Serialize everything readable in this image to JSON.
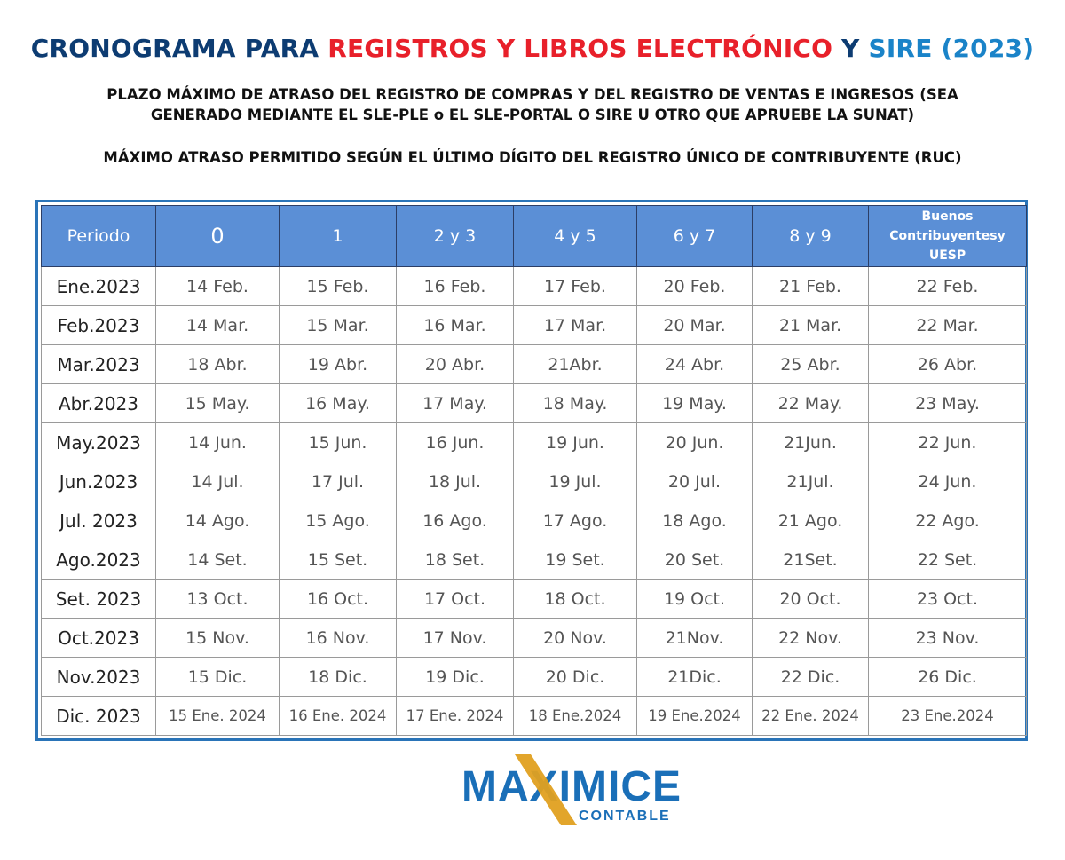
{
  "title": {
    "part1": "CRONOGRAMA PARA ",
    "part2": "REGISTROS Y LIBROS ELECTRÓNICO",
    "part3": " Y ",
    "part4": "SIRE",
    "part5": " (2023)",
    "colors": {
      "navy": "#0d3c72",
      "red": "#e8202a",
      "blue": "#1a83c8"
    }
  },
  "subtitle_line1": "PLAZO MÁXIMO DE ATRASO DEL REGISTRO DE COMPRAS Y DEL REGISTRO DE VENTAS E INGRESOS (SEA",
  "subtitle_line2": "GENERADO MEDIANTE EL SLE-PLE o EL SLE-PORTAL O SIRE U OTRO QUE APRUEBE LA SUNAT)",
  "subtitle_line3": "MÁXIMO ATRASO PERMITIDO SEGÚN EL ÚLTIMO DÍGITO DEL REGISTRO ÚNICO DE CONTRIBUYENTE (RUC)",
  "table": {
    "headers": [
      "Periodo",
      "0",
      "1",
      "2 y 3",
      "4 y 5",
      "6 y 7",
      "8 y 9",
      "Buenos Contribuyentesy UESP"
    ],
    "header_bc_lines": [
      "Buenos",
      "Contribuyentesy",
      "UESP"
    ],
    "rows": [
      [
        "Ene.2023",
        "14 Feb.",
        "15 Feb.",
        "16 Feb.",
        "17 Feb.",
        "20 Feb.",
        "21 Feb.",
        "22 Feb."
      ],
      [
        "Feb.2023",
        "14 Mar.",
        "15 Mar.",
        "16 Mar.",
        "17 Mar.",
        "20 Mar.",
        "21 Mar.",
        "22 Mar."
      ],
      [
        "Mar.2023",
        "18 Abr.",
        "19 Abr.",
        "20 Abr.",
        "21Abr.",
        "24 Abr.",
        "25 Abr.",
        "26 Abr."
      ],
      [
        "Abr.2023",
        "15 May.",
        "16 May.",
        "17 May.",
        "18 May.",
        "19 May.",
        "22 May.",
        "23 May."
      ],
      [
        "May.2023",
        "14 Jun.",
        "15 Jun.",
        "16 Jun.",
        "19 Jun.",
        "20 Jun.",
        "21Jun.",
        "22 Jun."
      ],
      [
        "Jun.2023",
        "14 Jul.",
        "17 Jul.",
        "18 Jul.",
        "19 Jul.",
        "20 Jul.",
        "21Jul.",
        "24 Jun."
      ],
      [
        "Jul. 2023",
        "14 Ago.",
        "15 Ago.",
        "16 Ago.",
        "17 Ago.",
        "18 Ago.",
        "21 Ago.",
        "22 Ago."
      ],
      [
        "Ago.2023",
        "14 Set.",
        "15 Set.",
        "18 Set.",
        "19 Set.",
        "20 Set.",
        "21Set.",
        "22 Set."
      ],
      [
        "Set. 2023",
        "13 Oct.",
        "16 Oct.",
        "17 Oct.",
        "18 Oct.",
        "19 Oct.",
        "20 Oct.",
        "23 Oct."
      ],
      [
        "Oct.2023",
        "15 Nov.",
        "16 Nov.",
        "17 Nov.",
        "20 Nov.",
        "21Nov.",
        "22 Nov.",
        "23 Nov."
      ],
      [
        "Nov.2023",
        "15 Dic.",
        "18 Dic.",
        "19 Dic.",
        "20 Dic.",
        "21Dic.",
        "22 Dic.",
        "26 Dic."
      ],
      [
        "Dic. 2023",
        "15 Ene. 2024",
        "16 Ene. 2024",
        "17 Ene. 2024",
        "18 Ene.2024",
        "19 Ene.2024",
        "22 Ene. 2024",
        "23 Ene.2024"
      ]
    ]
  },
  "logo": {
    "name": "MAXIMICE",
    "tagline": "CONTABLE",
    "colors": {
      "blue": "#1a6fb8",
      "gold": "#e0a020"
    }
  }
}
